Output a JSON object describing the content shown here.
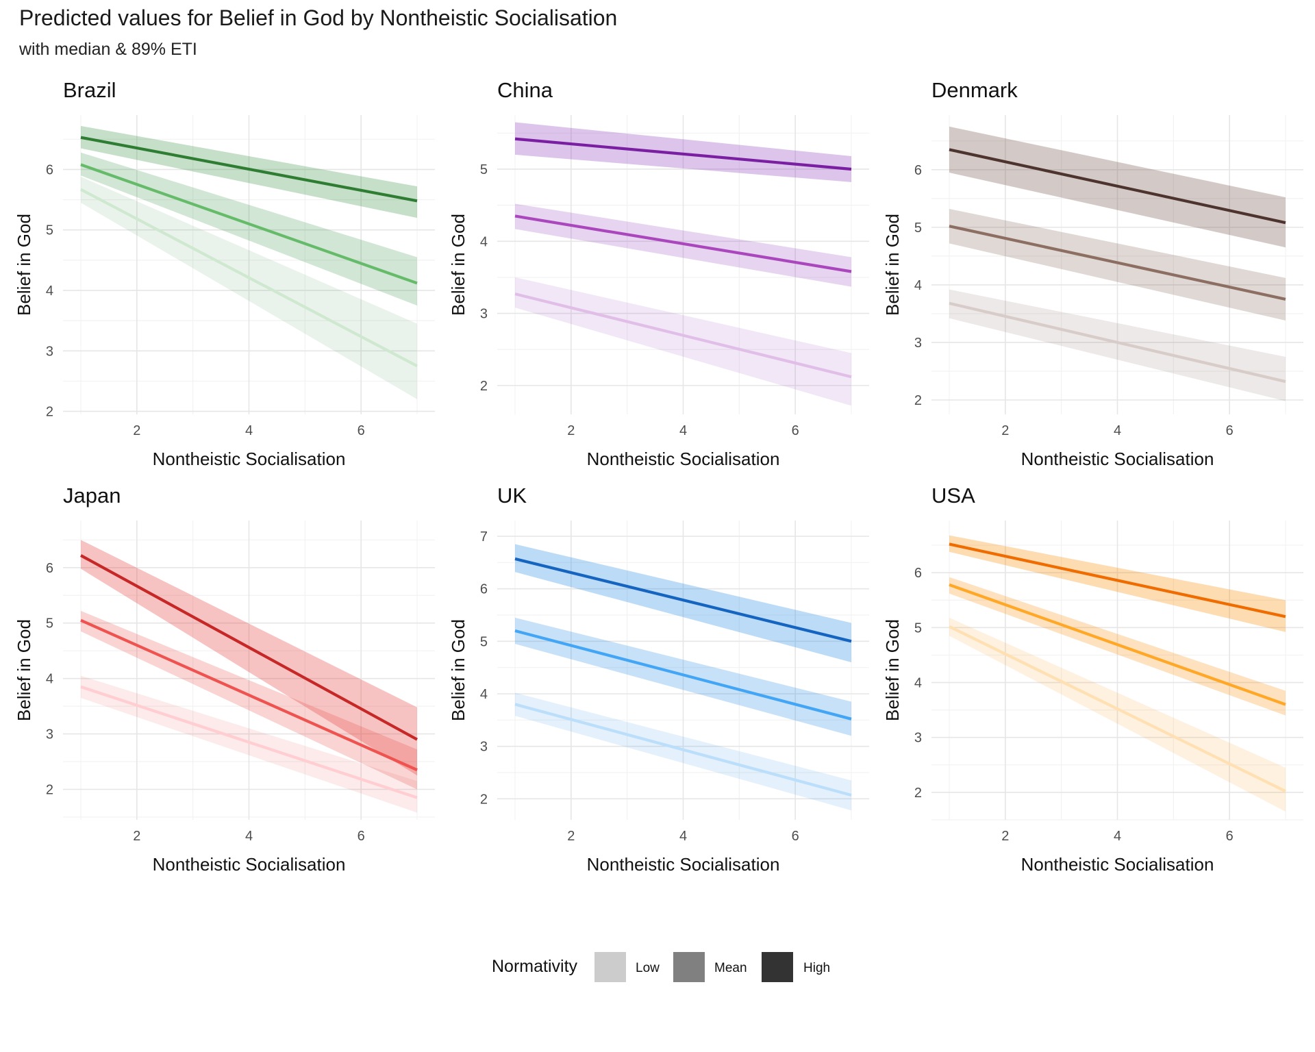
{
  "title": "Predicted values for Belief in God by Nontheistic Socialisation",
  "subtitle": "with median & 89% ETI",
  "chart_data": {
    "type": "line",
    "x_label": "Nontheistic Socialisation",
    "y_label": "Belief in God",
    "x_range": [
      1,
      7
    ],
    "x_ticks": [
      2,
      4,
      6
    ],
    "legend": {
      "title": "Normativity",
      "position": "bottom",
      "items": [
        {
          "label": "Low",
          "color": "#cccccc"
        },
        {
          "label": "Mean",
          "color": "#808080"
        },
        {
          "label": "High",
          "color": "#333333"
        }
      ]
    },
    "panels": [
      {
        "title": "Brazil",
        "y_ticks": [
          2,
          3,
          4,
          5,
          6
        ],
        "y_range": [
          1.95,
          6.9
        ],
        "band_color": "#2e8b3e",
        "series": [
          {
            "name": "Low",
            "line_color": "#cfe8d0",
            "band_opacity": 0.1,
            "median": [
              [
                1,
                5.67
              ],
              [
                7,
                2.75
              ]
            ],
            "lower": [
              [
                1,
                5.45
              ],
              [
                7,
                2.2
              ]
            ],
            "upper": [
              [
                1,
                5.88
              ],
              [
                7,
                3.45
              ]
            ]
          },
          {
            "name": "Mean",
            "line_color": "#66bb6a",
            "band_opacity": 0.22,
            "median": [
              [
                1,
                6.08
              ],
              [
                7,
                4.12
              ]
            ],
            "lower": [
              [
                1,
                5.9
              ],
              [
                7,
                3.75
              ]
            ],
            "upper": [
              [
                1,
                6.28
              ],
              [
                7,
                4.55
              ]
            ]
          },
          {
            "name": "High",
            "line_color": "#2e7d32",
            "band_opacity": 0.28,
            "median": [
              [
                1,
                6.53
              ],
              [
                7,
                5.48
              ]
            ],
            "lower": [
              [
                1,
                6.35
              ],
              [
                7,
                5.2
              ]
            ],
            "upper": [
              [
                1,
                6.72
              ],
              [
                7,
                5.72
              ]
            ]
          }
        ]
      },
      {
        "title": "China",
        "y_ticks": [
          2,
          3,
          4,
          5
        ],
        "y_range": [
          1.6,
          5.75
        ],
        "band_color": "#8e3dbd",
        "series": [
          {
            "name": "Low",
            "line_color": "#e1bee7",
            "band_opacity": 0.12,
            "median": [
              [
                1,
                3.27
              ],
              [
                7,
                2.12
              ]
            ],
            "lower": [
              [
                1,
                3.08
              ],
              [
                7,
                1.72
              ]
            ],
            "upper": [
              [
                1,
                3.5
              ],
              [
                7,
                2.45
              ]
            ]
          },
          {
            "name": "Mean",
            "line_color": "#ab47bc",
            "band_opacity": 0.22,
            "median": [
              [
                1,
                4.35
              ],
              [
                7,
                3.58
              ]
            ],
            "lower": [
              [
                1,
                4.17
              ],
              [
                7,
                3.37
              ]
            ],
            "upper": [
              [
                1,
                4.52
              ],
              [
                7,
                3.78
              ]
            ]
          },
          {
            "name": "High",
            "line_color": "#7b1fa2",
            "band_opacity": 0.3,
            "median": [
              [
                1,
                5.42
              ],
              [
                7,
                5.0
              ]
            ],
            "lower": [
              [
                1,
                5.2
              ],
              [
                7,
                4.82
              ]
            ],
            "upper": [
              [
                1,
                5.65
              ],
              [
                7,
                5.18
              ]
            ]
          }
        ]
      },
      {
        "title": "Denmark",
        "y_ticks": [
          2,
          3,
          4,
          5,
          6
        ],
        "y_range": [
          1.75,
          6.95
        ],
        "band_color": "#6d4c41",
        "series": [
          {
            "name": "Low",
            "line_color": "#d7ccc8",
            "band_opacity": 0.12,
            "median": [
              [
                1,
                3.68
              ],
              [
                7,
                2.32
              ]
            ],
            "lower": [
              [
                1,
                3.42
              ],
              [
                7,
                1.98
              ]
            ],
            "upper": [
              [
                1,
                3.92
              ],
              [
                7,
                2.75
              ]
            ]
          },
          {
            "name": "Mean",
            "line_color": "#8d6e63",
            "band_opacity": 0.22,
            "median": [
              [
                1,
                5.02
              ],
              [
                7,
                3.75
              ]
            ],
            "lower": [
              [
                1,
                4.72
              ],
              [
                7,
                3.38
              ]
            ],
            "upper": [
              [
                1,
                5.32
              ],
              [
                7,
                4.12
              ]
            ]
          },
          {
            "name": "High",
            "line_color": "#4e342e",
            "band_opacity": 0.3,
            "median": [
              [
                1,
                6.35
              ],
              [
                7,
                5.08
              ]
            ],
            "lower": [
              [
                1,
                5.95
              ],
              [
                7,
                4.65
              ]
            ],
            "upper": [
              [
                1,
                6.75
              ],
              [
                7,
                5.52
              ]
            ]
          }
        ]
      },
      {
        "title": "Japan",
        "y_ticks": [
          2,
          3,
          4,
          5,
          6
        ],
        "y_range": [
          1.45,
          6.85
        ],
        "band_color": "#e53935",
        "series": [
          {
            "name": "Low",
            "line_color": "#ffcdd2",
            "band_opacity": 0.1,
            "median": [
              [
                1,
                3.85
              ],
              [
                7,
                1.85
              ]
            ],
            "lower": [
              [
                1,
                3.65
              ],
              [
                7,
                1.58
              ]
            ],
            "upper": [
              [
                1,
                4.05
              ],
              [
                7,
                2.15
              ]
            ]
          },
          {
            "name": "Mean",
            "line_color": "#ef5350",
            "band_opacity": 0.22,
            "median": [
              [
                1,
                5.05
              ],
              [
                7,
                2.35
              ]
            ],
            "lower": [
              [
                1,
                4.85
              ],
              [
                7,
                2.0
              ]
            ],
            "upper": [
              [
                1,
                5.22
              ],
              [
                7,
                2.72
              ]
            ]
          },
          {
            "name": "High",
            "line_color": "#c62828",
            "band_opacity": 0.3,
            "median": [
              [
                1,
                6.22
              ],
              [
                7,
                2.9
              ]
            ],
            "lower": [
              [
                1,
                5.98
              ],
              [
                7,
                2.25
              ]
            ],
            "upper": [
              [
                1,
                6.5
              ],
              [
                7,
                3.48
              ]
            ]
          }
        ]
      },
      {
        "title": "UK",
        "y_ticks": [
          2,
          3,
          4,
          5,
          6,
          7
        ],
        "y_range": [
          1.6,
          7.3
        ],
        "band_color": "#1e88e5",
        "series": [
          {
            "name": "Low",
            "line_color": "#bbdefb",
            "band_opacity": 0.12,
            "median": [
              [
                1,
                3.8
              ],
              [
                7,
                2.07
              ]
            ],
            "lower": [
              [
                1,
                3.58
              ],
              [
                7,
                1.78
              ]
            ],
            "upper": [
              [
                1,
                4.02
              ],
              [
                7,
                2.35
              ]
            ]
          },
          {
            "name": "Mean",
            "line_color": "#42a5f5",
            "band_opacity": 0.25,
            "median": [
              [
                1,
                5.2
              ],
              [
                7,
                3.52
              ]
            ],
            "lower": [
              [
                1,
                4.95
              ],
              [
                7,
                3.2
              ]
            ],
            "upper": [
              [
                1,
                5.45
              ],
              [
                7,
                3.85
              ]
            ]
          },
          {
            "name": "High",
            "line_color": "#1565c0",
            "band_opacity": 0.3,
            "median": [
              [
                1,
                6.57
              ],
              [
                7,
                5.0
              ]
            ],
            "lower": [
              [
                1,
                6.32
              ],
              [
                7,
                4.6
              ]
            ],
            "upper": [
              [
                1,
                6.85
              ],
              [
                7,
                5.35
              ]
            ]
          }
        ]
      },
      {
        "title": "USA",
        "y_ticks": [
          2,
          3,
          4,
          5,
          6
        ],
        "y_range": [
          1.5,
          6.95
        ],
        "band_color": "#fb8c00",
        "series": [
          {
            "name": "Low",
            "line_color": "#ffe0b2",
            "band_opacity": 0.12,
            "median": [
              [
                1,
                5.02
              ],
              [
                7,
                2.02
              ]
            ],
            "lower": [
              [
                1,
                4.85
              ],
              [
                7,
                1.65
              ]
            ],
            "upper": [
              [
                1,
                5.18
              ],
              [
                7,
                2.45
              ]
            ]
          },
          {
            "name": "Mean",
            "line_color": "#ffa726",
            "band_opacity": 0.25,
            "median": [
              [
                1,
                5.78
              ],
              [
                7,
                3.6
              ]
            ],
            "lower": [
              [
                1,
                5.62
              ],
              [
                7,
                3.4
              ]
            ],
            "upper": [
              [
                1,
                5.92
              ],
              [
                7,
                3.85
              ]
            ]
          },
          {
            "name": "High",
            "line_color": "#ef6c00",
            "band_opacity": 0.3,
            "median": [
              [
                1,
                6.52
              ],
              [
                7,
                5.2
              ]
            ],
            "lower": [
              [
                1,
                6.38
              ],
              [
                7,
                4.92
              ]
            ],
            "upper": [
              [
                1,
                6.68
              ],
              [
                7,
                5.5
              ]
            ]
          }
        ]
      }
    ]
  }
}
